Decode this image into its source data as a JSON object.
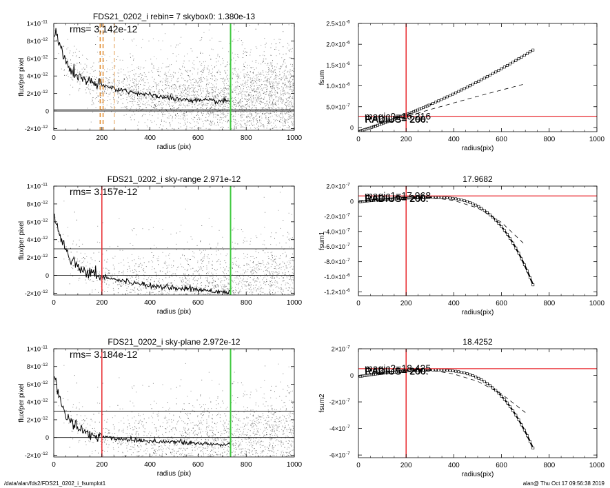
{
  "footer": {
    "path": "/data/alan/fds2/FDS21_0202_i_fsumplot1",
    "stamp": "alan@  Thu Oct 17 09:56:38 2019"
  },
  "colors": {
    "scatter_gray": "#a6a6a6",
    "scatter_dark": "#404040",
    "red": "#e8262b",
    "green": "#3ec93e",
    "orange": "#e08a2c",
    "black": "#000000"
  },
  "chart_data": [
    {
      "id": "p1",
      "type": "scatter",
      "title": "FDS21_0202_i rebin= 7    skybox0:  1.380e-13",
      "annotation": "rms= 3.142e-12",
      "xlabel": "radius (pix)",
      "ylabel": "flux/per pixel",
      "xlim": [
        0,
        1000
      ],
      "ylim": [
        -2.2e-12,
        1e-11
      ],
      "x_ticks": [
        "0",
        "200",
        "400",
        "600",
        "800",
        "1000"
      ],
      "y_ticks": [
        {
          "v": 1e-11,
          "m": "1×10",
          "e": "-11"
        },
        {
          "v": 8e-12,
          "m": "8×10",
          "e": "-12"
        },
        {
          "v": 6e-12,
          "m": "6×10",
          "e": "-12"
        },
        {
          "v": 4e-12,
          "m": "4×10",
          "e": "-12"
        },
        {
          "v": 2e-12,
          "m": "2×10",
          "e": "-12"
        },
        {
          "v": 0,
          "m": "0",
          "e": ""
        },
        {
          "v": -2e-12,
          "m": "-2×10",
          "e": "-12"
        }
      ],
      "profile": {
        "x": [
          5,
          15,
          30,
          50,
          80,
          120,
          160,
          200,
          250,
          300,
          400,
          500,
          600,
          700,
          735
        ],
        "y": [
          9.2e-12,
          8.3e-12,
          7e-12,
          5.6e-12,
          4.4e-12,
          3.6e-12,
          3.2e-12,
          2.9e-12,
          2.6e-12,
          2.3e-12,
          1.8e-12,
          1.4e-12,
          1.2e-12,
          1.1e-12,
          1.1e-12
        ]
      },
      "hlines": [
        {
          "y": 1.38e-13,
          "color": "black"
        },
        {
          "y": 0,
          "color": "black"
        }
      ],
      "vlines": [
        {
          "x": 735,
          "color": "green"
        },
        {
          "x": 193,
          "color": "orange",
          "dash": true
        },
        {
          "x": 205,
          "color": "orange",
          "dash": true
        },
        {
          "x": 252,
          "color": "orange",
          "dash": true,
          "thin": true
        }
      ]
    },
    {
      "id": "p2",
      "type": "scatter",
      "title": "FDS21_0202_i sky-range  2.971e-12",
      "annotation": "rms= 3.157e-12",
      "xlabel": "radius (pix)",
      "ylabel": "flux/per pixel",
      "xlim": [
        0,
        1000
      ],
      "ylim": [
        -2.2e-12,
        1e-11
      ],
      "x_ticks": [
        "0",
        "200",
        "400",
        "600",
        "800",
        "1000"
      ],
      "y_ticks": [
        {
          "v": 1e-11,
          "m": "1×10",
          "e": "-11"
        },
        {
          "v": 8e-12,
          "m": "8×10",
          "e": "-12"
        },
        {
          "v": 6e-12,
          "m": "6×10",
          "e": "-12"
        },
        {
          "v": 4e-12,
          "m": "4×10",
          "e": "-12"
        },
        {
          "v": 2e-12,
          "m": "2×10",
          "e": "-12"
        },
        {
          "v": 0,
          "m": "0",
          "e": ""
        },
        {
          "v": -2e-12,
          "m": "-2×10",
          "e": "-12"
        }
      ],
      "profile": {
        "x": [
          5,
          15,
          30,
          50,
          80,
          120,
          160,
          200,
          250,
          300,
          400,
          500,
          600,
          700,
          735
        ],
        "y": [
          6.5e-12,
          5.5e-12,
          4.2e-12,
          2.8e-12,
          1.6e-12,
          7e-13,
          2e-13,
          -1e-13,
          -4e-13,
          -7e-13,
          -1.1e-12,
          -1.4e-12,
          -1.6e-12,
          -1.8e-12,
          -1.8e-12
        ]
      },
      "hlines": [
        {
          "y": 2.971e-12,
          "color": "black"
        },
        {
          "y": 0,
          "color": "black"
        }
      ],
      "vlines": [
        {
          "x": 200,
          "color": "red"
        },
        {
          "x": 735,
          "color": "green"
        }
      ]
    },
    {
      "id": "p3",
      "type": "scatter",
      "title": "FDS21_0202_i sky-plane  2.972e-12",
      "annotation": "rms= 3.184e-12",
      "xlabel": "radius (pix)",
      "ylabel": "flux/per pixel",
      "xlim": [
        0,
        1000
      ],
      "ylim": [
        -2.2e-12,
        1e-11
      ],
      "x_ticks": [
        "0",
        "200",
        "400",
        "600",
        "800",
        "1000"
      ],
      "y_ticks": [
        {
          "v": 1e-11,
          "m": "1×10",
          "e": "-11"
        },
        {
          "v": 8e-12,
          "m": "8×10",
          "e": "-12"
        },
        {
          "v": 6e-12,
          "m": "6×10",
          "e": "-12"
        },
        {
          "v": 4e-12,
          "m": "4×10",
          "e": "-12"
        },
        {
          "v": 2e-12,
          "m": "2×10",
          "e": "-12"
        },
        {
          "v": 0,
          "m": "0",
          "e": ""
        },
        {
          "v": -2e-12,
          "m": "-2×10",
          "e": "-12"
        }
      ],
      "profile": {
        "x": [
          5,
          15,
          30,
          50,
          80,
          120,
          160,
          200,
          250,
          300,
          400,
          500,
          600,
          700,
          735
        ],
        "y": [
          6.3e-12,
          5.3e-12,
          4e-12,
          2.6e-12,
          1.5e-12,
          7e-13,
          3e-13,
          1e-13,
          -1e-13,
          -2e-13,
          -4e-13,
          -5e-13,
          -7e-13,
          -8e-13,
          -8e-13
        ]
      },
      "hlines": [
        {
          "y": 2.972e-12,
          "color": "black"
        },
        {
          "y": 0,
          "color": "black"
        }
      ],
      "vlines": [
        {
          "x": 200,
          "color": "red"
        },
        {
          "x": 735,
          "color": "green"
        }
      ]
    },
    {
      "id": "p4",
      "type": "line",
      "title": "",
      "xlabel": "radius(pix)",
      "ylabel": "fsum",
      "xlim": [
        0,
        1000
      ],
      "ylim": [
        -1e-07,
        2.5e-06
      ],
      "x_ticks": [
        "0",
        "200",
        "400",
        "600",
        "800",
        "1000"
      ],
      "y_ticks": [
        {
          "v": 2.5e-06,
          "m": "2.5×10",
          "e": "-6"
        },
        {
          "v": 2e-06,
          "m": "2.0×10",
          "e": "-6"
        },
        {
          "v": 1.5e-06,
          "m": "1.5×10",
          "e": "-6"
        },
        {
          "v": 1e-06,
          "m": "1.0×10",
          "e": "-6"
        },
        {
          "v": 5e-07,
          "m": "5.0×10",
          "e": "-7"
        },
        {
          "v": 0,
          "m": "0",
          "e": ""
        }
      ],
      "labels": [
        "magic0=16.216",
        "RADIUS= 200.",
        "RADIUS= 200."
      ],
      "squares": {
        "from": 5,
        "to": 735,
        "step": 7,
        "model": "quad",
        "a": 1.2e-06,
        "b": 1.8e-06,
        "c": -1e-07
      },
      "dashed": {
        "x": [
          0,
          100,
          200,
          300,
          400,
          500,
          600,
          700
        ],
        "y": [
          -8e-08,
          1e-07,
          2.6e-07,
          4.3e-07,
          5.9e-07,
          7.5e-07,
          9e-07,
          1.05e-06
        ]
      },
      "hlines": [
        {
          "y": 2.6e-07,
          "color": "red"
        }
      ],
      "vlines": [
        {
          "x": 200,
          "color": "red"
        }
      ]
    },
    {
      "id": "p5",
      "type": "line",
      "title": "17.9682",
      "xlabel": "radius(pix)",
      "ylabel": "fsum1",
      "xlim": [
        0,
        1000
      ],
      "ylim": [
        -1.25e-06,
        2e-07
      ],
      "x_ticks": [
        "0",
        "200",
        "400",
        "600",
        "800",
        "1000"
      ],
      "y_ticks": [
        {
          "v": 2e-07,
          "m": "2.0×10",
          "e": "-7"
        },
        {
          "v": 0,
          "m": "0",
          "e": ""
        },
        {
          "v": -2e-07,
          "m": "-2.0×10",
          "e": "-7"
        },
        {
          "v": -4e-07,
          "m": "-4.0×10",
          "e": "-7"
        },
        {
          "v": -6e-07,
          "m": "-6.0×10",
          "e": "-7"
        },
        {
          "v": -8e-07,
          "m": "-8.0×10",
          "e": "-7"
        },
        {
          "v": -1e-06,
          "m": "-1.0×10",
          "e": "-6"
        },
        {
          "v": -1.2e-06,
          "m": "-1.2×10",
          "e": "-6"
        }
      ],
      "labels": [
        "magic1=17.968",
        "RADIUS= 200.",
        "RADIUS= 200."
      ],
      "squares": {
        "from": 5,
        "to": 735,
        "step": 7,
        "model": "cubicdrop",
        "peak": 5e-08,
        "px": 300,
        "end": -1.13e-06
      },
      "dashed": {
        "x": [
          0,
          100,
          200,
          300,
          400,
          500,
          600,
          700
        ],
        "y": [
          0,
          2.5e-08,
          4.5e-08,
          5e-08,
          1e-08,
          -9e-08,
          -2.8e-07,
          -5.8e-07
        ]
      },
      "hlines": [
        {
          "y": 7e-08,
          "color": "red"
        }
      ],
      "vlines": [
        {
          "x": 200,
          "color": "red"
        }
      ]
    },
    {
      "id": "p6",
      "type": "line",
      "title": "18.4252",
      "xlabel": "radius(pix)",
      "ylabel": "fsum2",
      "xlim": [
        0,
        1000
      ],
      "ylim": [
        -6.2e-07,
        2e-07
      ],
      "x_ticks": [
        "0",
        "200",
        "400",
        "600",
        "800",
        "1000"
      ],
      "y_ticks": [
        {
          "v": 2e-07,
          "m": "2×10",
          "e": "-7"
        },
        {
          "v": 0,
          "m": "0",
          "e": ""
        },
        {
          "v": -2e-07,
          "m": "-2×10",
          "e": "-7"
        },
        {
          "v": -4e-07,
          "m": "-4×10",
          "e": "-7"
        },
        {
          "v": -6e-07,
          "m": "-6×10",
          "e": "-7"
        }
      ],
      "labels": [
        "magic2=18.425",
        "RADIUS= 200.",
        "RADIUS= 200."
      ],
      "squares": {
        "from": 5,
        "to": 735,
        "step": 7,
        "model": "cubicdrop",
        "peak": 4e-08,
        "px": 300,
        "end": -5.6e-07
      },
      "dashed": {
        "x": [
          0,
          100,
          200,
          300,
          400,
          500,
          600,
          700
        ],
        "y": [
          0,
          2.2e-08,
          3.8e-08,
          4e-08,
          1e-08,
          -4.5e-08,
          -1.4e-07,
          -2.8e-07
        ]
      },
      "hlines": [
        {
          "y": 5e-08,
          "color": "red"
        }
      ],
      "vlines": [
        {
          "x": 200,
          "color": "red"
        }
      ]
    }
  ]
}
